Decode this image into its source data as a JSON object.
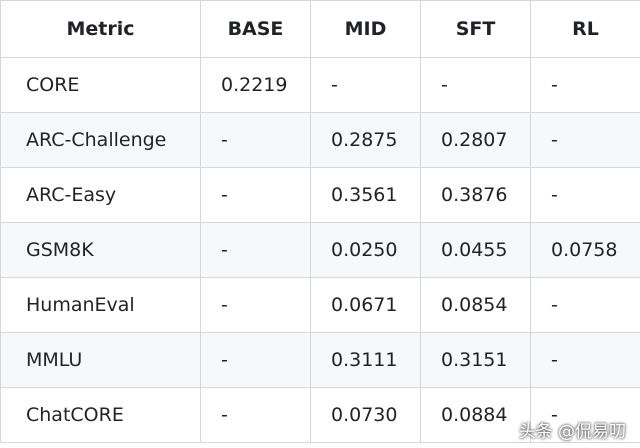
{
  "table": {
    "header": [
      "Metric",
      "BASE",
      "MID",
      "SFT",
      "RL"
    ],
    "rows": [
      [
        "CORE",
        "0.2219",
        "-",
        "-",
        "-"
      ],
      [
        "ARC-Challenge",
        "-",
        "0.2875",
        "0.2807",
        "-"
      ],
      [
        "ARC-Easy",
        "-",
        "0.3561",
        "0.3876",
        "-"
      ],
      [
        "GSM8K",
        "-",
        "0.0250",
        "0.0455",
        "0.0758"
      ],
      [
        "HumanEval",
        "-",
        "0.0671",
        "0.0854",
        "-"
      ],
      [
        "MMLU",
        "-",
        "0.3111",
        "0.3151",
        "-"
      ],
      [
        "ChatCORE",
        "-",
        "0.0730",
        "0.0884",
        "-"
      ]
    ]
  },
  "watermark": "头条 @侃易叨"
}
